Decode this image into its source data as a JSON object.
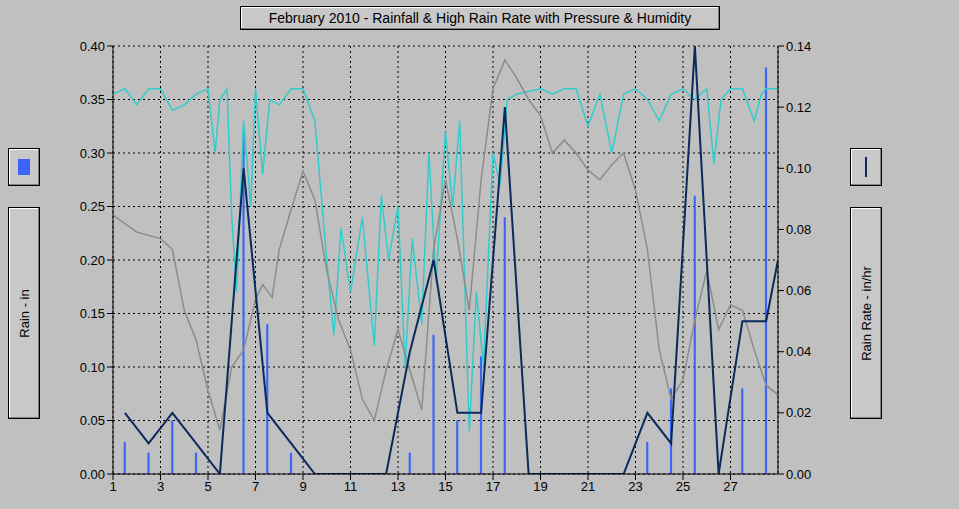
{
  "chart_data": {
    "type": "bar",
    "title": "February 2010 - Rainfall & High Rain Rate with Pressure & Humidity",
    "y_label": "Rain - in",
    "y2_label": "Rain Rate - in/hr",
    "xlim": [
      1,
      29
    ],
    "xticks": [
      1,
      3,
      5,
      7,
      9,
      11,
      13,
      15,
      17,
      19,
      21,
      23,
      25,
      27
    ],
    "ylim": [
      0,
      0.4
    ],
    "yticks": [
      {
        "value": 0,
        "label": "0.00"
      },
      {
        "value": 0.05,
        "label": "0.05"
      },
      {
        "value": 0.1,
        "label": "0.10"
      },
      {
        "value": 0.15,
        "label": "0.15"
      },
      {
        "value": 0.2,
        "label": "0.20"
      },
      {
        "value": 0.25,
        "label": "0.25"
      },
      {
        "value": 0.3,
        "label": "0.30"
      },
      {
        "value": 0.35,
        "label": "0.35"
      },
      {
        "value": 0.4,
        "label": "0.40"
      }
    ],
    "y2lim": [
      0,
      0.14
    ],
    "y2ticks": [
      {
        "value": 0,
        "label": "0.00"
      },
      {
        "value": 0.02,
        "label": "0.02"
      },
      {
        "value": 0.04,
        "label": "0.04"
      },
      {
        "value": 0.06,
        "label": "0.06"
      },
      {
        "value": 0.08,
        "label": "0.08"
      },
      {
        "value": 0.1,
        "label": "0.10"
      },
      {
        "value": 0.12,
        "label": "0.12"
      },
      {
        "value": 0.14,
        "label": "0.14"
      }
    ],
    "grid": true,
    "series": [
      {
        "name": "Rainfall",
        "type": "bar",
        "color": "#3b66f5",
        "x": [
          1.5,
          2.5,
          3.5,
          4.5,
          5.5,
          6.5,
          7.5,
          8.5,
          9.5,
          10.5,
          11.5,
          12.5,
          13.5,
          14.5,
          15.5,
          16.5,
          17.5,
          18.5,
          19.5,
          20.5,
          21.5,
          22.5,
          23.5,
          24.5,
          25.5,
          26.5,
          27.5,
          28.5
        ],
        "values": [
          0.03,
          0.02,
          0.05,
          0.02,
          0,
          0.32,
          0.14,
          0.02,
          0,
          0,
          0,
          0,
          0.02,
          0.13,
          0.05,
          0.11,
          0.24,
          0,
          0,
          0,
          0,
          0,
          0.03,
          0.08,
          0.26,
          0,
          0.08,
          0.38
        ]
      },
      {
        "name": "Humidity",
        "type": "line",
        "color": "#33cccc",
        "x": [
          1,
          1.5,
          2,
          2.5,
          3,
          3.5,
          4,
          4.5,
          5,
          5.3,
          5.5,
          5.8,
          6,
          6.2,
          6.5,
          6.8,
          7,
          7.3,
          7.6,
          8,
          8.5,
          9,
          9.5,
          10,
          10.3,
          10.6,
          11,
          11.5,
          12,
          12.3,
          12.6,
          13,
          13.3,
          13.6,
          14,
          14.3,
          14.6,
          15,
          15.3,
          15.6,
          16,
          16.3,
          16.6,
          17,
          17.3,
          17.6,
          18,
          19,
          19.5,
          20,
          20.5,
          21,
          21.5,
          22,
          22.5,
          23,
          23.5,
          24,
          24.5,
          25,
          25.5,
          26,
          26.3,
          26.6,
          27,
          27.5,
          28,
          28.3,
          28.5,
          29
        ],
        "values": [
          0.355,
          0.36,
          0.345,
          0.36,
          0.36,
          0.34,
          0.345,
          0.355,
          0.36,
          0.3,
          0.35,
          0.36,
          0.24,
          0.17,
          0.33,
          0.25,
          0.36,
          0.28,
          0.35,
          0.345,
          0.36,
          0.36,
          0.33,
          0.2,
          0.13,
          0.23,
          0.17,
          0.24,
          0.12,
          0.26,
          0.2,
          0.25,
          0.1,
          0.22,
          0.14,
          0.3,
          0.18,
          0.32,
          0.25,
          0.33,
          0.04,
          0.17,
          0.1,
          0.3,
          0.27,
          0.35,
          0.355,
          0.36,
          0.355,
          0.36,
          0.36,
          0.325,
          0.355,
          0.3,
          0.355,
          0.36,
          0.35,
          0.33,
          0.355,
          0.36,
          0.35,
          0.36,
          0.29,
          0.35,
          0.36,
          0.36,
          0.33,
          0.355,
          0.36,
          0.36
        ]
      },
      {
        "name": "Pressure",
        "type": "line",
        "color": "#8c8c8c",
        "x": [
          1,
          2,
          3,
          3.5,
          4,
          4.5,
          5,
          5.5,
          6,
          6.5,
          7,
          7.3,
          7.7,
          8,
          8.5,
          9,
          9.5,
          10,
          10.5,
          11,
          11.5,
          12,
          12.5,
          13,
          13.5,
          14,
          14.5,
          15,
          15.5,
          16,
          16.5,
          17,
          17.5,
          18,
          18.5,
          19,
          19.5,
          20,
          20.5,
          21,
          21.5,
          22,
          22.5,
          23,
          23.5,
          24,
          24.5,
          25,
          25.5,
          26,
          26.5,
          27,
          27.5,
          28,
          28.5,
          29
        ],
        "values": [
          0.242,
          0.226,
          0.22,
          0.21,
          0.153,
          0.125,
          0.078,
          0.041,
          0.1,
          0.116,
          0.163,
          0.177,
          0.165,
          0.21,
          0.247,
          0.283,
          0.256,
          0.19,
          0.144,
          0.116,
          0.07,
          0.05,
          0.097,
          0.135,
          0.097,
          0.06,
          0.21,
          0.275,
          0.22,
          0.153,
          0.275,
          0.36,
          0.387,
          0.37,
          0.35,
          0.335,
          0.3,
          0.312,
          0.3,
          0.284,
          0.275,
          0.289,
          0.3,
          0.265,
          0.21,
          0.116,
          0.07,
          0.088,
          0.144,
          0.19,
          0.135,
          0.158,
          0.153,
          0.116,
          0.083,
          0.074
        ]
      },
      {
        "name": "High Rain Rate",
        "type": "line",
        "axis": "y2",
        "color": "#0b2a5c",
        "x": [
          1.5,
          2.5,
          3.5,
          4.5,
          5.5,
          6.5,
          7.5,
          8.5,
          9.5,
          10.5,
          11.5,
          12.5,
          13.5,
          14.5,
          15.5,
          16.5,
          17.5,
          18.5,
          19.5,
          20.5,
          21.5,
          22.5,
          23.5,
          24.5,
          25.5,
          26.5,
          27.5,
          28.5,
          29
        ],
        "values": [
          0.02,
          0.01,
          0.02,
          0.01,
          0,
          0.1,
          0.02,
          0.01,
          0,
          0,
          0,
          0,
          0.04,
          0.07,
          0.02,
          0.02,
          0.12,
          0,
          0,
          0,
          0,
          0,
          0.02,
          0.01,
          0.14,
          0,
          0.05,
          0.05,
          0.07
        ]
      }
    ]
  }
}
